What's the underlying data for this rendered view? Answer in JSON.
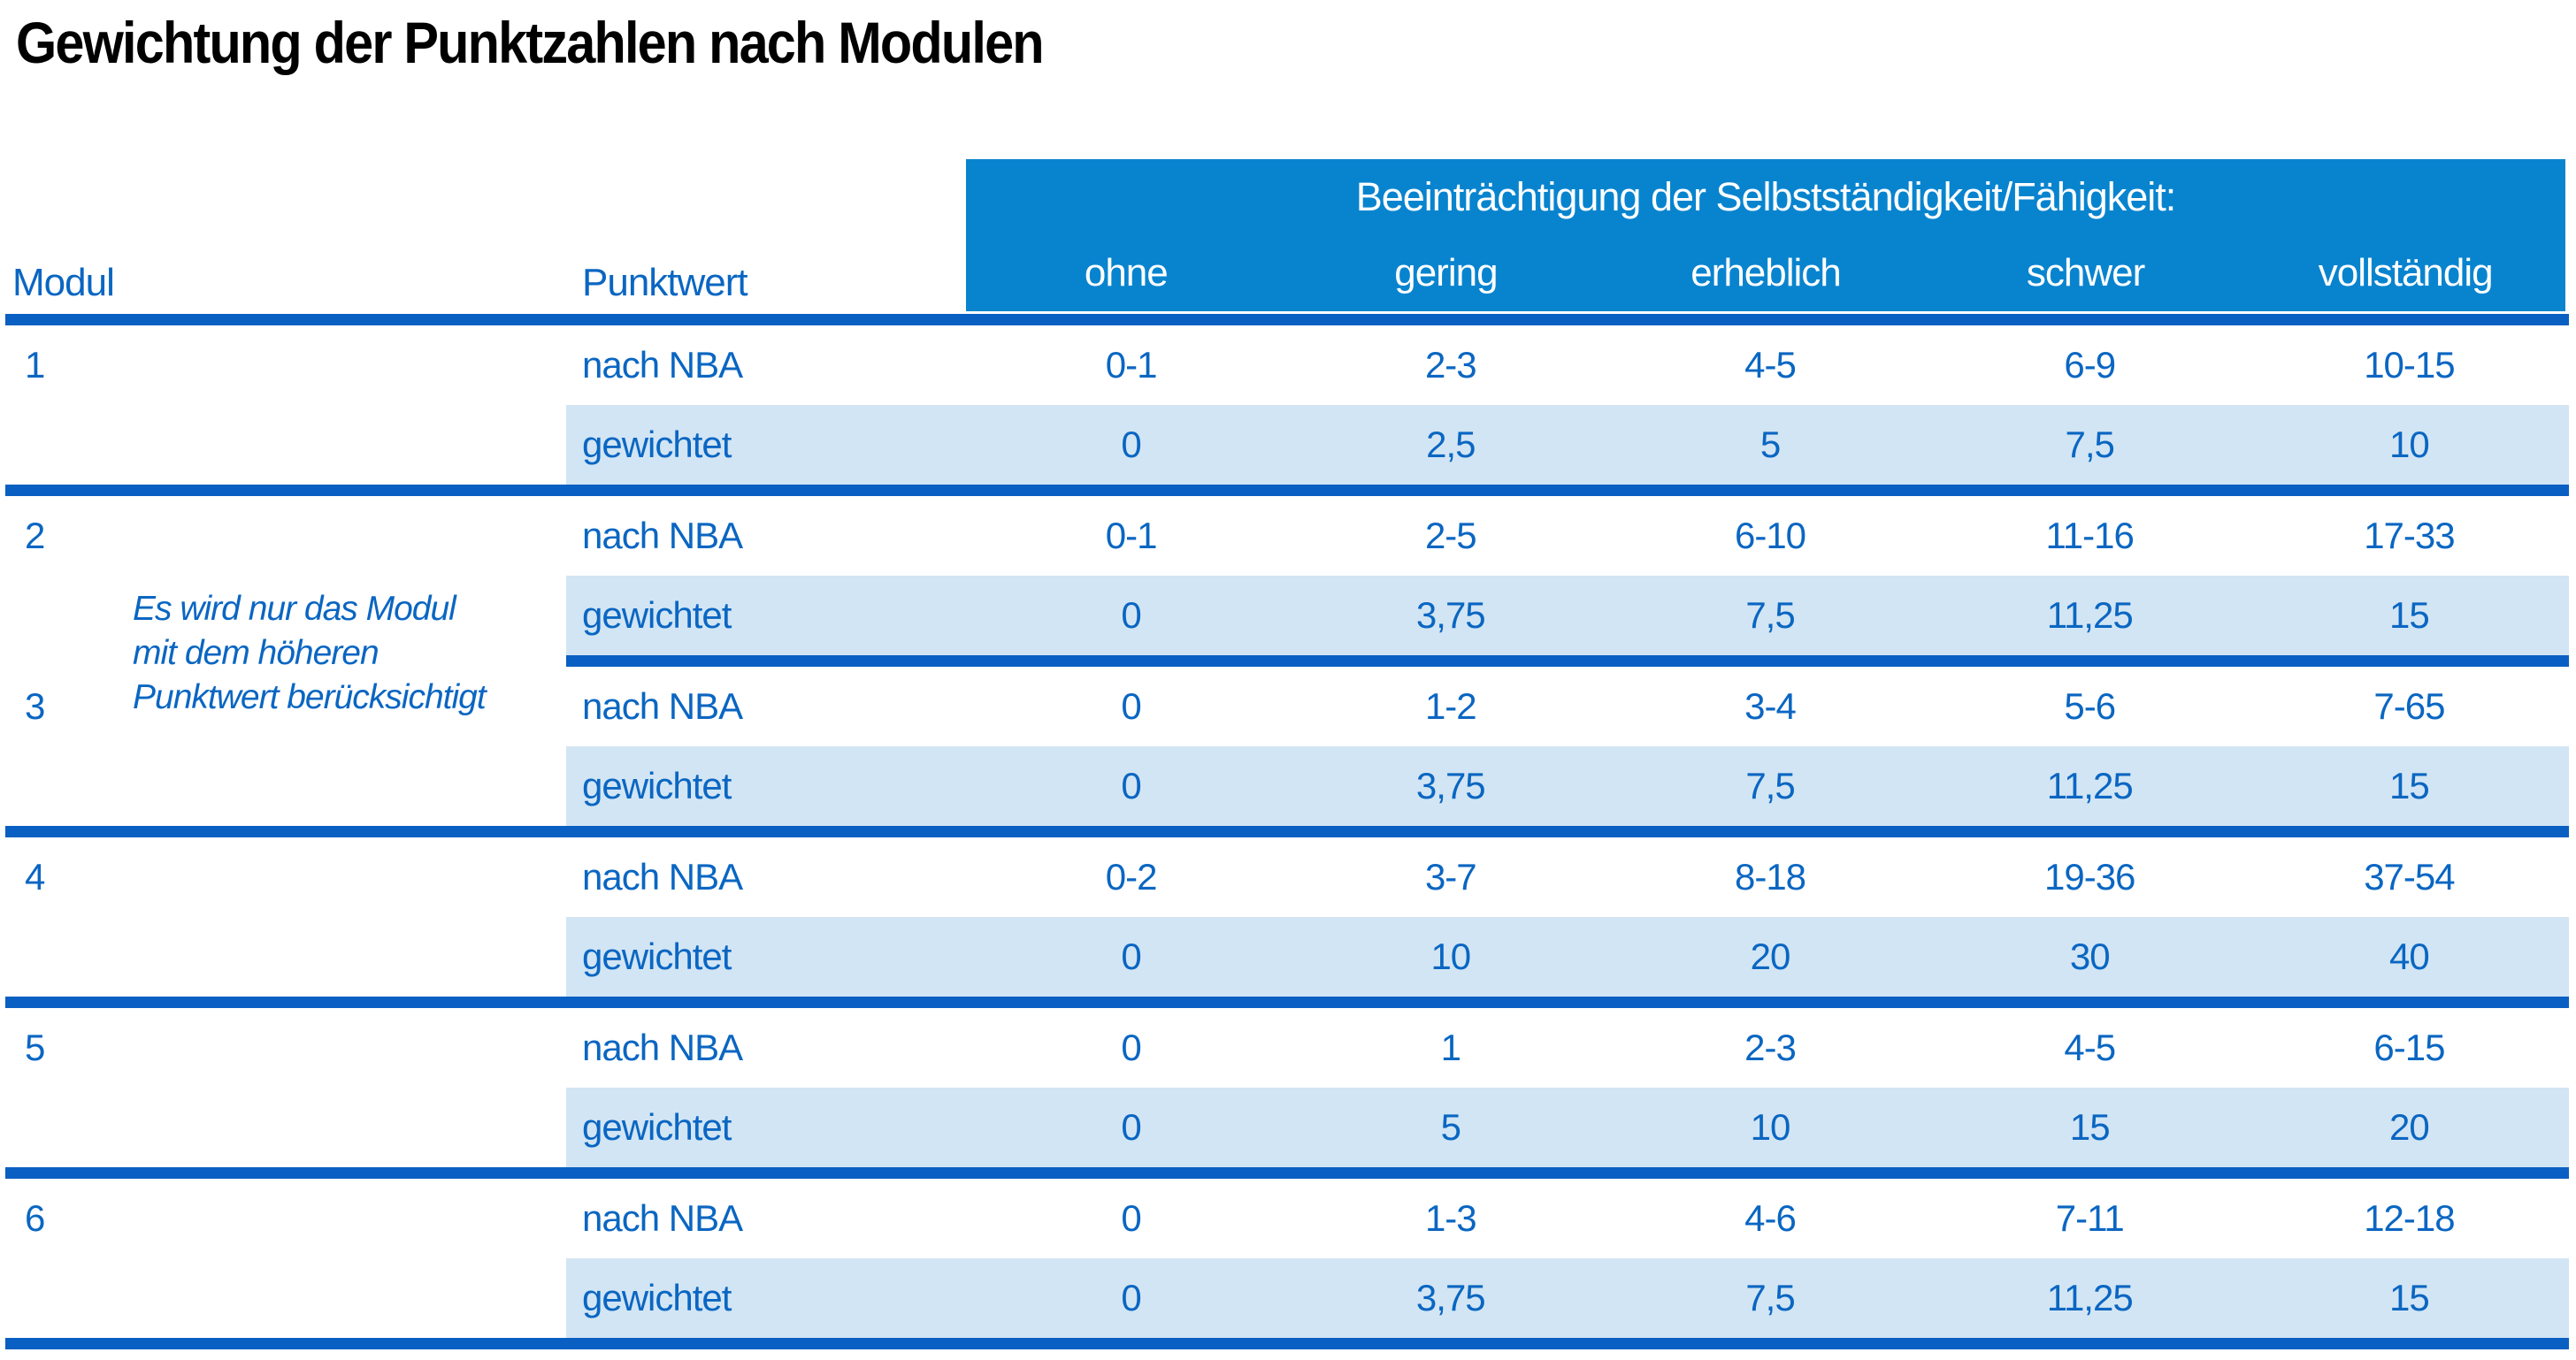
{
  "title": "Gewichtung der Punktzahlen nach Modulen",
  "colors": {
    "band_blue": "#0884cf",
    "rule_blue": "#0a5fc2",
    "row_shade_blue": "#d2e5f4",
    "text_blue": "#0a66c2",
    "band_text": "#ffffff",
    "title_text": "#000000"
  },
  "table": {
    "modul_header": "Modul",
    "punktwert_header": "Punktwert",
    "band_title": "Beeinträchtigung der Selbstständigkeit/Fähigkeit:",
    "severity_columns": [
      "ohne",
      "gering",
      "erheblich",
      "schwer",
      "vollständig"
    ],
    "labels": {
      "nba": "nach NBA",
      "weighted": "gewichtet"
    },
    "note": {
      "line1": "Es wird nur das Modul",
      "line2": "mit dem höheren",
      "line3": "Punktwert berücksichtigt"
    },
    "modules": [
      {
        "id": "1",
        "nba": [
          "0-1",
          "2-3",
          "4-5",
          "6-9",
          "10-15"
        ],
        "weighted": [
          "0",
          "2,5",
          "5",
          "7,5",
          "10"
        ]
      },
      {
        "id": "2",
        "nba": [
          "0-1",
          "2-5",
          "6-10",
          "11-16",
          "17-33"
        ],
        "weighted": [
          "0",
          "3,75",
          "7,5",
          "11,25",
          "15"
        ]
      },
      {
        "id": "3",
        "nba": [
          "0",
          "1-2",
          "3-4",
          "5-6",
          "7-65"
        ],
        "weighted": [
          "0",
          "3,75",
          "7,5",
          "11,25",
          "15"
        ]
      },
      {
        "id": "4",
        "nba": [
          "0-2",
          "3-7",
          "8-18",
          "19-36",
          "37-54"
        ],
        "weighted": [
          "0",
          "10",
          "20",
          "30",
          "40"
        ]
      },
      {
        "id": "5",
        "nba": [
          "0",
          "1",
          "2-3",
          "4-5",
          "6-15"
        ],
        "weighted": [
          "0",
          "5",
          "10",
          "15",
          "20"
        ]
      },
      {
        "id": "6",
        "nba": [
          "0",
          "1-3",
          "4-6",
          "7-11",
          "12-18"
        ],
        "weighted": [
          "0",
          "3,75",
          "7,5",
          "11,25",
          "15"
        ]
      }
    ]
  }
}
